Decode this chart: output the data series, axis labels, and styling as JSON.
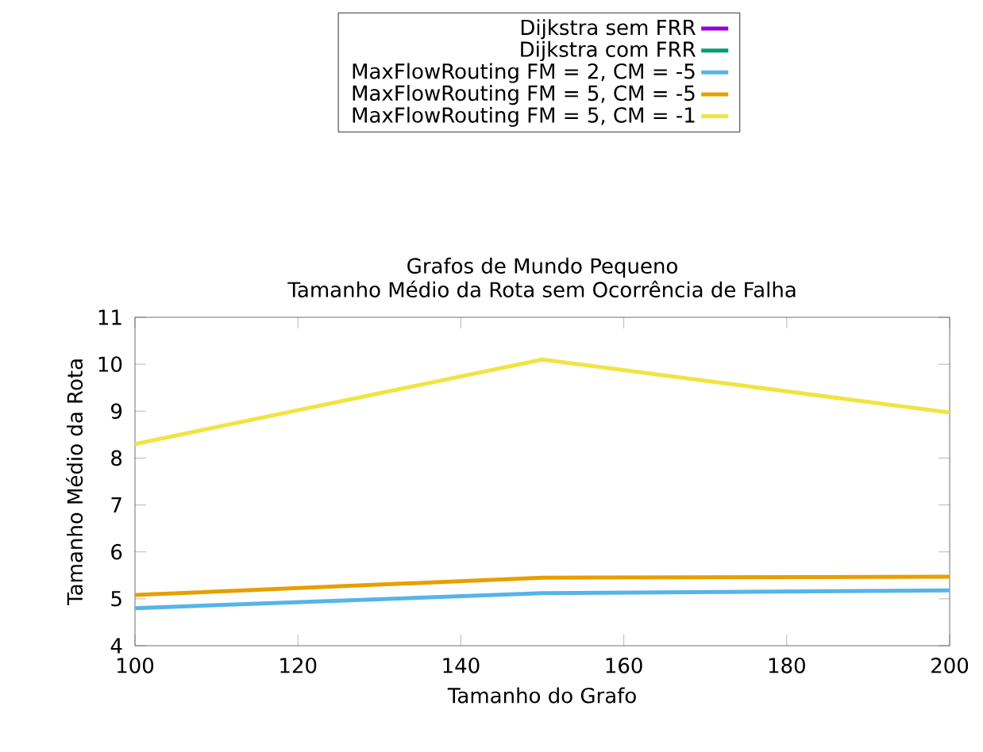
{
  "chart_data": {
    "type": "line",
    "title": "Grafos de Mundo Pequeno",
    "subtitle": "Tamanho Médio da Rota sem Ocorrência de Falha",
    "xlabel": "Tamanho do Grafo",
    "ylabel": "Tamanho Médio da Rota",
    "x": [
      100,
      150,
      200
    ],
    "series": [
      {
        "name": "Dijkstra sem FRR",
        "color": "#9400d3",
        "values": [
          null,
          null,
          null
        ]
      },
      {
        "name": "Dijkstra com FRR",
        "color": "#009e73",
        "values": [
          null,
          null,
          null
        ]
      },
      {
        "name": "MaxFlowRouting FM = 2, CM = -5",
        "color": "#56b4e9",
        "values": [
          4.8,
          5.12,
          5.18
        ]
      },
      {
        "name": "MaxFlowRouting FM = 5, CM = -5",
        "color": "#e69f00",
        "values": [
          5.08,
          5.45,
          5.47
        ]
      },
      {
        "name": "MaxFlowRouting FM = 5, CM = -1",
        "color": "#f0e442",
        "values": [
          8.3,
          10.1,
          8.97
        ]
      }
    ],
    "xlim": [
      100,
      200
    ],
    "xticks": [
      100,
      120,
      140,
      160,
      180,
      200
    ],
    "ylim": [
      4,
      11
    ],
    "yticks": [
      4,
      5,
      6,
      7,
      8,
      9,
      10,
      11
    ],
    "legend": "top",
    "grid": false,
    "marker": "none",
    "line_style": "solid"
  }
}
